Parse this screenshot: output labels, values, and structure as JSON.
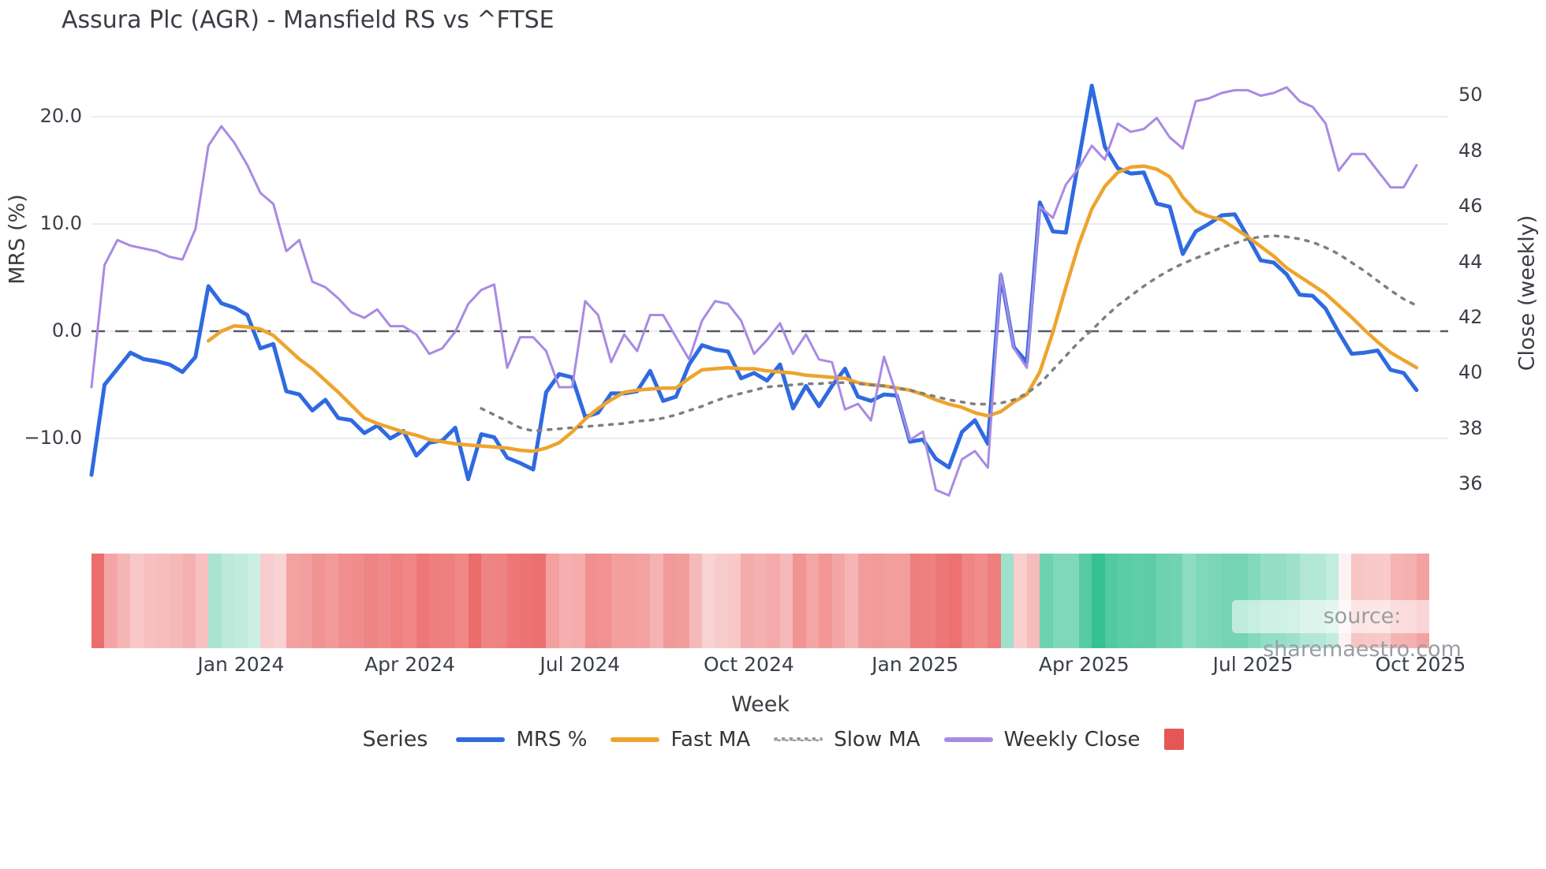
{
  "title": "Assura Plc (AGR) - Mansfield RS vs ^FTSE",
  "watermark": "source: sharemaestro.com",
  "axes": {
    "x_label": "Week",
    "left_label": "MRS (%)",
    "right_label": "Close (weekly)",
    "left_ticks": [
      {
        "label": "20.0",
        "value": 20.0
      },
      {
        "label": "10.0",
        "value": 10.0
      },
      {
        "label": "0.0",
        "value": 0.0
      },
      {
        "label": "−10.0",
        "value": -10.0
      }
    ],
    "right_ticks": [
      {
        "label": "50",
        "value": 50
      },
      {
        "label": "48",
        "value": 48
      },
      {
        "label": "46",
        "value": 46
      },
      {
        "label": "44",
        "value": 44
      },
      {
        "label": "42",
        "value": 42
      },
      {
        "label": "40",
        "value": 40
      },
      {
        "label": "38",
        "value": 38
      },
      {
        "label": "36",
        "value": 36
      }
    ],
    "x_ticks": [
      {
        "label": "Jan 2024",
        "week": 11.5
      },
      {
        "label": "Apr 2024",
        "week": 24.5
      },
      {
        "label": "Jul 2024",
        "week": 37.6
      },
      {
        "label": "Oct 2024",
        "week": 50.6
      },
      {
        "label": "Jan 2025",
        "week": 63.4
      },
      {
        "label": "Apr 2025",
        "week": 76.4
      },
      {
        "label": "Jul 2025",
        "week": 89.4
      },
      {
        "label": "Oct 2025",
        "week": 102.3
      }
    ]
  },
  "legend": {
    "title": "Series",
    "items": [
      {
        "label": "MRS %",
        "color": "#2f6ae0",
        "style": "solid"
      },
      {
        "label": "Fast MA",
        "color": "#eda42d",
        "style": "solid"
      },
      {
        "label": "Slow MA",
        "color": "#9a9a9a",
        "style": "dotted"
      },
      {
        "label": "Weekly Close",
        "color": "#a98ae2",
        "style": "solid"
      }
    ],
    "heatmap_swatch_color": "#e45756"
  },
  "chart_data": {
    "type": "line",
    "title": "Assura Plc (AGR) - Mansfield RS vs ^FTSE",
    "xlabel": "Week",
    "ylabel_left": "MRS (%)",
    "ylabel_right": "Close (weekly)",
    "x_unit": "weekly samples, mid-Oct 2023 to mid-Oct 2025",
    "n_weeks": 103,
    "left_axis_range": [
      -16,
      24
    ],
    "right_axis_range": [
      34.5,
      51
    ],
    "zero_reference_line": 0.0,
    "grid": "horizontal, left-axis ticks only",
    "legend_position": "bottom",
    "series": [
      {
        "name": "MRS %",
        "axis": "left",
        "color": "#2f6ae0",
        "style": "solid",
        "width": 5,
        "values": [
          -13.4,
          -5.0,
          -3.5,
          -2.0,
          -2.6,
          -2.8,
          -3.1,
          -3.8,
          -2.4,
          4.2,
          2.6,
          2.2,
          1.5,
          -1.6,
          -1.2,
          -5.6,
          -5.9,
          -7.4,
          -6.4,
          -8.1,
          -8.3,
          -9.5,
          -8.8,
          -10.0,
          -9.3,
          -11.6,
          -10.4,
          -10.2,
          -9.0,
          -13.8,
          -9.6,
          -9.9,
          -11.8,
          -12.3,
          -12.9,
          -5.7,
          -4.0,
          -4.3,
          -8.0,
          -7.6,
          -5.8,
          -5.8,
          -5.6,
          -3.7,
          -6.5,
          -6.1,
          -3.1,
          -1.3,
          -1.7,
          -1.9,
          -4.4,
          -3.9,
          -4.6,
          -3.1,
          -7.2,
          -5.1,
          -7.0,
          -5.1,
          -3.5,
          -6.1,
          -6.5,
          -5.9,
          -6.0,
          -10.3,
          -10.1,
          -11.9,
          -12.7,
          -9.4,
          -8.3,
          -10.5,
          5.2,
          -1.5,
          -2.9,
          12.0,
          9.3,
          9.2,
          16.0,
          22.9,
          17.2,
          15.2,
          14.7,
          14.8,
          11.9,
          11.6,
          7.2,
          9.3,
          10.0,
          10.8,
          10.9,
          8.8,
          6.6,
          6.4,
          5.3,
          3.4,
          3.3,
          2.1,
          -0.1,
          -2.1,
          -2.0,
          -1.8,
          -3.6,
          -3.9,
          -5.5
        ]
      },
      {
        "name": "Fast MA",
        "axis": "left",
        "color": "#eda42d",
        "style": "solid",
        "width": 4.5,
        "values": [
          null,
          null,
          null,
          null,
          null,
          null,
          null,
          null,
          null,
          -0.9,
          0.0,
          0.5,
          0.4,
          0.2,
          -0.4,
          -1.5,
          -2.6,
          -3.5,
          -4.6,
          -5.7,
          -6.9,
          -8.1,
          -8.6,
          -9.0,
          -9.4,
          -9.7,
          -10.1,
          -10.3,
          -10.5,
          -10.6,
          -10.7,
          -10.8,
          -10.9,
          -11.1,
          -11.2,
          -10.9,
          -10.4,
          -9.4,
          -8.2,
          -7.2,
          -6.4,
          -5.7,
          -5.5,
          -5.4,
          -5.3,
          -5.3,
          -4.4,
          -3.6,
          -3.5,
          -3.4,
          -3.5,
          -3.5,
          -3.7,
          -3.8,
          -3.9,
          -4.1,
          -4.2,
          -4.3,
          -4.4,
          -4.8,
          -5.0,
          -5.1,
          -5.3,
          -5.5,
          -5.9,
          -6.4,
          -6.8,
          -7.1,
          -7.6,
          -7.9,
          -7.5,
          -6.6,
          -5.9,
          -3.8,
          -0.1,
          4.1,
          8.1,
          11.4,
          13.5,
          14.8,
          15.3,
          15.4,
          15.1,
          14.4,
          12.5,
          11.2,
          10.7,
          10.4,
          9.6,
          8.8,
          7.9,
          7.0,
          5.9,
          5.1,
          4.3,
          3.5,
          2.4,
          1.3,
          0.1,
          -1.0,
          -2.0,
          -2.7,
          -3.4
        ]
      },
      {
        "name": "Slow MA",
        "axis": "left",
        "color": "#7f7f7f",
        "style": "dotted",
        "width": 3.5,
        "values": [
          null,
          null,
          null,
          null,
          null,
          null,
          null,
          null,
          null,
          null,
          null,
          null,
          null,
          null,
          null,
          null,
          null,
          null,
          null,
          null,
          null,
          null,
          null,
          null,
          null,
          null,
          null,
          null,
          null,
          null,
          -7.2,
          -7.8,
          -8.4,
          -9.0,
          -9.3,
          -9.2,
          -9.1,
          -9.0,
          -8.9,
          -8.8,
          -8.7,
          -8.6,
          -8.4,
          -8.3,
          -8.1,
          -7.8,
          -7.4,
          -7.0,
          -6.5,
          -6.1,
          -5.8,
          -5.5,
          -5.2,
          -5.1,
          -5.0,
          -4.9,
          -4.9,
          -4.8,
          -4.8,
          -4.9,
          -5.0,
          -5.1,
          -5.3,
          -5.5,
          -5.8,
          -6.1,
          -6.4,
          -6.6,
          -6.8,
          -6.8,
          -6.7,
          -6.4,
          -5.8,
          -4.9,
          -3.6,
          -2.3,
          -1.0,
          0.1,
          1.3,
          2.4,
          3.3,
          4.2,
          5.0,
          5.7,
          6.3,
          6.8,
          7.3,
          7.8,
          8.2,
          8.6,
          8.8,
          8.9,
          8.8,
          8.6,
          8.3,
          7.8,
          7.2,
          6.4,
          5.6,
          4.7,
          3.8,
          3.0,
          2.4
        ]
      },
      {
        "name": "Weekly Close",
        "axis": "right",
        "color": "#a98ae2",
        "style": "solid",
        "width": 3,
        "values": [
          39.5,
          43.9,
          44.8,
          44.6,
          44.5,
          44.4,
          44.2,
          44.1,
          45.2,
          48.2,
          48.9,
          48.3,
          47.5,
          46.5,
          46.1,
          44.4,
          44.8,
          43.3,
          43.1,
          42.7,
          42.2,
          42.0,
          42.3,
          41.7,
          41.7,
          41.4,
          40.7,
          40.9,
          41.5,
          42.5,
          43.0,
          43.2,
          40.2,
          41.3,
          41.3,
          40.8,
          39.5,
          39.5,
          42.6,
          42.1,
          40.4,
          41.4,
          40.8,
          42.1,
          42.1,
          41.3,
          40.5,
          41.9,
          42.6,
          42.5,
          41.9,
          40.7,
          41.2,
          41.8,
          40.7,
          41.4,
          40.5,
          40.4,
          38.7,
          38.9,
          38.3,
          40.6,
          39.2,
          37.6,
          37.9,
          35.8,
          35.6,
          36.9,
          37.2,
          36.6,
          43.6,
          40.9,
          40.2,
          46.0,
          45.6,
          46.8,
          47.4,
          48.2,
          47.7,
          49.0,
          48.7,
          48.8,
          49.2,
          48.5,
          48.1,
          49.8,
          49.9,
          50.1,
          50.2,
          50.2,
          50.0,
          50.1,
          50.3,
          49.8,
          49.6,
          49.0,
          47.3,
          47.9,
          47.9,
          47.3,
          46.7,
          46.7,
          47.5
        ]
      }
    ],
    "heatmap_strip": {
      "description": "weekly cells below chart, diverging red-white-green colouring of MRS %",
      "negative_color": "#ec6a6a",
      "positive_color": "#29bd8b",
      "neutral_color": "#ffffff"
    }
  },
  "colors": {
    "background": "#ffffff",
    "gridline": "#e9edf2",
    "zero_dashed_line": "#555b66",
    "tick_text": "#3a3f47",
    "watermark_text": "#999ea3"
  }
}
